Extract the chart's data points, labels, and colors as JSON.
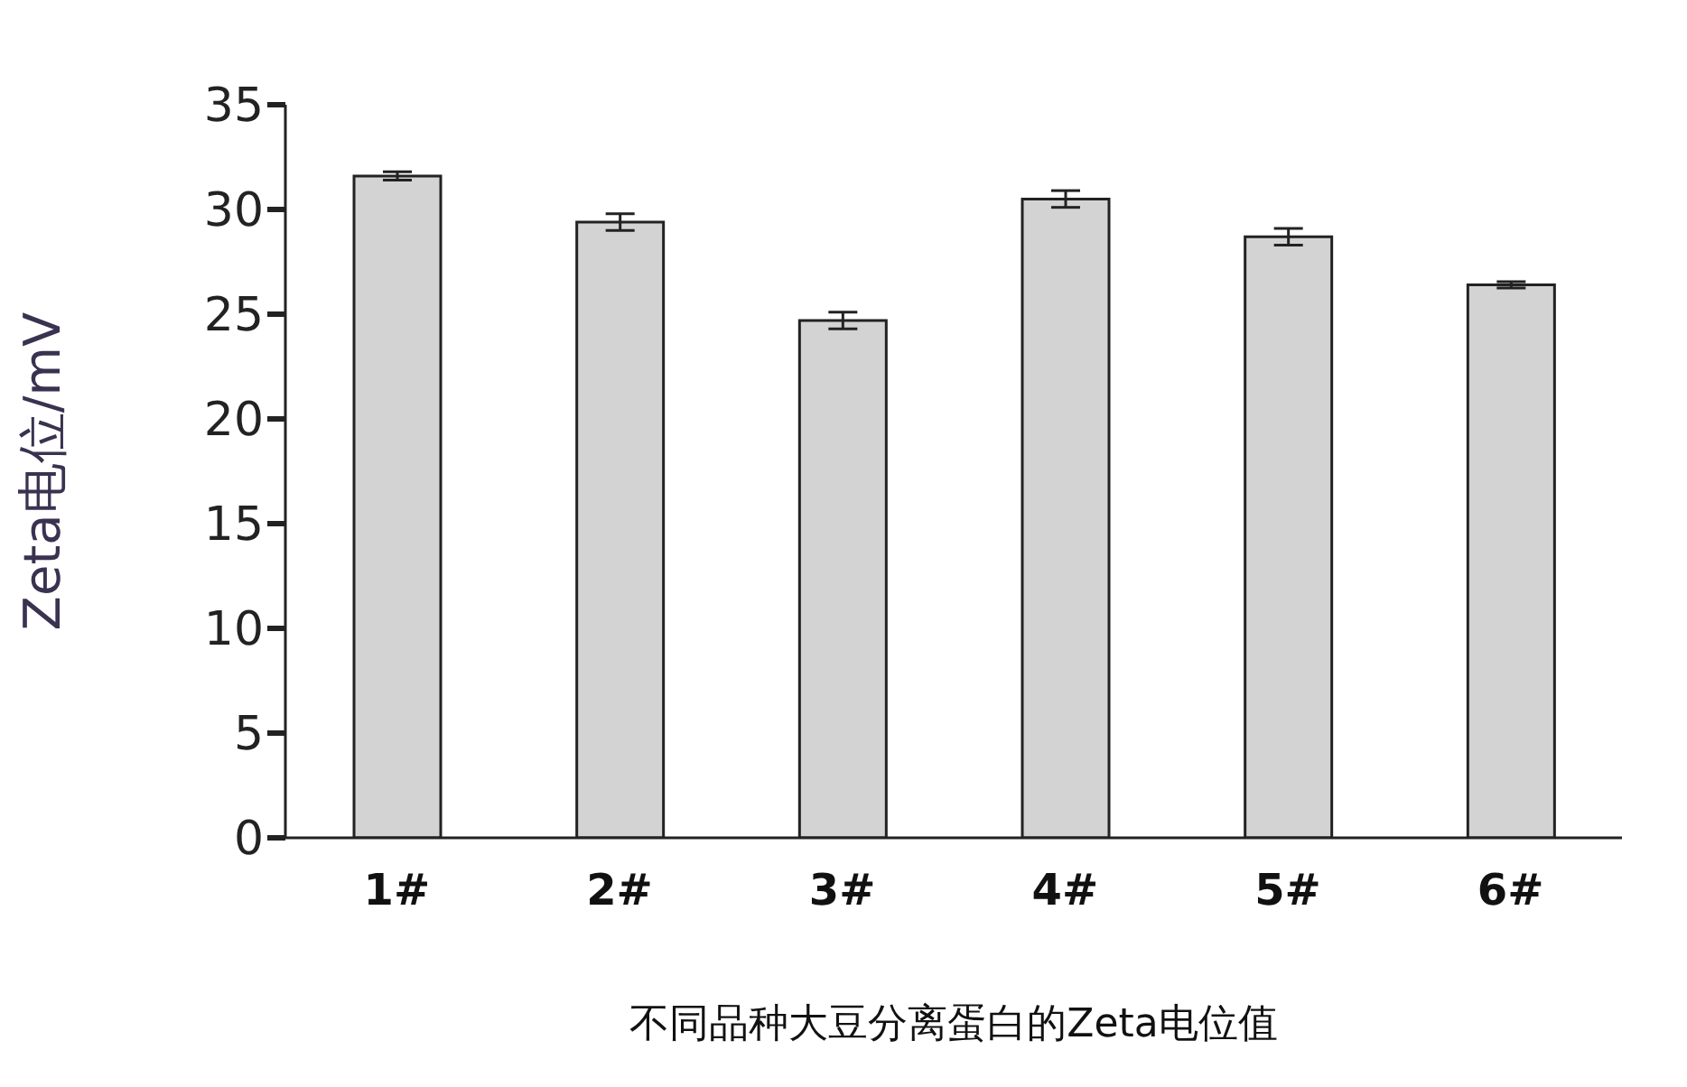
{
  "chart_data": {
    "type": "bar",
    "xlabel": "不同品种大豆分离蛋白的Zeta电位值",
    "ylabel": "Zeta电位/mV",
    "categories": [
      "1#",
      "2#",
      "3#",
      "4#",
      "5#",
      "6#"
    ],
    "values": [
      31.6,
      29.4,
      24.7,
      30.5,
      28.7,
      26.4
    ],
    "errors": [
      0.2,
      0.4,
      0.4,
      0.4,
      0.4,
      0.15
    ],
    "color": "#d3d3d3",
    "ylim": [
      0,
      35
    ],
    "yticks": [
      0,
      5,
      10,
      15,
      20,
      25,
      30,
      35
    ],
    "grid": false,
    "legend": false
  }
}
